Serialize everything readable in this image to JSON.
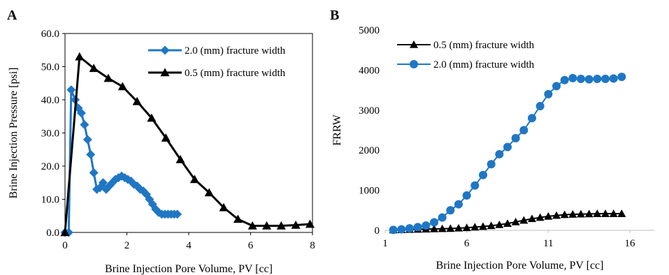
{
  "chart_data": [
    {
      "panel_label": "A",
      "type": "line",
      "xlabel": "Brine Injection Pore Volume, PV [cc]",
      "ylabel": "Brine Injection Pressure [psi]",
      "xlim": [
        0,
        8
      ],
      "ylim": [
        0,
        60
      ],
      "xticks": [
        0,
        2,
        4,
        6,
        8
      ],
      "yticks": [
        0,
        10,
        20,
        30,
        40,
        50,
        60
      ],
      "ytick_labels": [
        "0.0",
        "10.0",
        "20.0",
        "30.0",
        "40.0",
        "50.0",
        "60.0"
      ],
      "grid": false,
      "legend_position": "top-right",
      "series": [
        {
          "name": "2.0 (mm) fracture width",
          "color": "#1f77c4",
          "marker": "diamond",
          "x": [
            0.0,
            0.12,
            0.2,
            0.33,
            0.43,
            0.53,
            0.63,
            0.73,
            0.83,
            0.93,
            1.03,
            1.13,
            1.23,
            1.33,
            1.43,
            1.53,
            1.63,
            1.73,
            1.83,
            1.93,
            2.03,
            2.13,
            2.23,
            2.33,
            2.43,
            2.53,
            2.63,
            2.73,
            2.83,
            2.93,
            3.03,
            3.13,
            3.23,
            3.33,
            3.43,
            3.53,
            3.63
          ],
          "y": [
            0.0,
            0.0,
            43.0,
            40.0,
            37.5,
            36.0,
            32.5,
            28.0,
            23.5,
            18.0,
            13.0,
            13.5,
            15.0,
            13.0,
            14.0,
            15.0,
            16.0,
            16.5,
            17.0,
            16.5,
            16.0,
            15.5,
            14.5,
            14.0,
            13.0,
            12.5,
            11.5,
            10.0,
            8.5,
            7.0,
            6.0,
            5.5,
            5.5,
            5.5,
            5.5,
            5.5,
            5.5
          ]
        },
        {
          "name": "0.5 (mm) fracture width",
          "color": "#000000",
          "marker": "triangle",
          "x": [
            0.0,
            0.47,
            0.93,
            1.4,
            1.86,
            2.33,
            2.8,
            3.26,
            3.73,
            4.19,
            4.66,
            5.13,
            5.59,
            6.06,
            6.52,
            6.99,
            7.46,
            7.92
          ],
          "y": [
            0.0,
            53.0,
            49.5,
            46.5,
            44.0,
            39.5,
            34.5,
            28.5,
            22.0,
            16.0,
            12.0,
            7.5,
            4.0,
            2.0,
            2.0,
            2.0,
            2.2,
            2.5
          ]
        }
      ]
    },
    {
      "panel_label": "B",
      "type": "line",
      "xlabel": "Brine Injection Pore Volume, PV [cc]",
      "ylabel": "FRRW",
      "xlim": [
        1,
        17.5
      ],
      "ylim": [
        0,
        5000
      ],
      "xticks": [
        1,
        6,
        11,
        16
      ],
      "yticks": [
        0,
        1000,
        2000,
        3000,
        4000,
        5000
      ],
      "grid": false,
      "legend_position": "top-left",
      "series": [
        {
          "name": "0.5 (mm) fracture width",
          "color": "#000000",
          "marker": "triangle",
          "x": [
            1.5,
            2.0,
            2.5,
            3.0,
            3.5,
            4.0,
            4.5,
            5.0,
            5.5,
            6.0,
            6.5,
            7.0,
            7.5,
            8.0,
            8.5,
            9.0,
            9.5,
            10.0,
            10.5,
            11.0,
            11.5,
            12.0,
            12.5,
            13.0,
            13.5,
            14.0,
            14.5,
            15.0,
            15.5
          ],
          "y": [
            10,
            15,
            20,
            25,
            30,
            35,
            40,
            45,
            55,
            65,
            80,
            95,
            115,
            140,
            170,
            210,
            250,
            290,
            320,
            350,
            370,
            390,
            400,
            405,
            410,
            415,
            415,
            415,
            415
          ]
        },
        {
          "name": "2.0 (mm) fracture width",
          "color": "#1f77c4",
          "marker": "circle",
          "x": [
            1.5,
            2.0,
            2.5,
            3.0,
            3.5,
            4.0,
            4.5,
            5.0,
            5.5,
            6.0,
            6.5,
            7.0,
            7.5,
            8.0,
            8.5,
            9.0,
            9.5,
            10.0,
            10.5,
            11.0,
            11.5,
            12.0,
            12.5,
            13.0,
            13.5,
            14.0,
            14.5,
            15.0,
            15.5
          ],
          "y": [
            10,
            25,
            50,
            80,
            120,
            200,
            320,
            500,
            650,
            870,
            1120,
            1380,
            1650,
            1900,
            2080,
            2300,
            2500,
            2800,
            3100,
            3400,
            3600,
            3750,
            3800,
            3780,
            3770,
            3780,
            3780,
            3790,
            3830
          ]
        }
      ]
    }
  ]
}
